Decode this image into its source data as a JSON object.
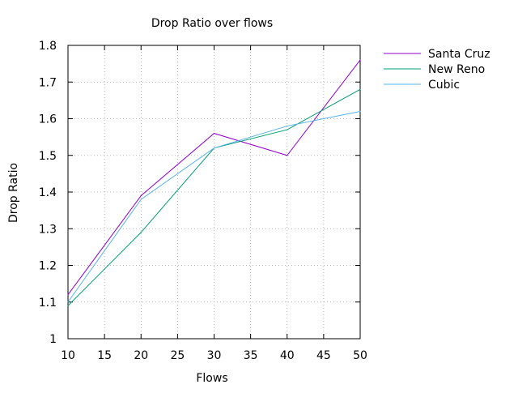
{
  "chart_data": {
    "type": "line",
    "title": "Drop Ratio over flows",
    "xlabel": "Flows",
    "ylabel": "Drop Ratio",
    "xlim": [
      10,
      50
    ],
    "ylim": [
      1,
      1.8
    ],
    "x_ticks": [
      10,
      15,
      20,
      25,
      30,
      35,
      40,
      45,
      50
    ],
    "y_ticks": [
      1,
      1.1,
      1.2,
      1.3,
      1.4,
      1.5,
      1.6,
      1.7,
      1.8
    ],
    "x_tick_labels": [
      "10",
      "15",
      "20",
      "25",
      "30",
      "35",
      "40",
      "45",
      "50"
    ],
    "y_tick_labels": [
      "1",
      "1.1",
      "1.2",
      "1.3",
      "1.4",
      "1.5",
      "1.6",
      "1.7",
      "1.8"
    ],
    "grid": true,
    "legend_position": "outside-top-right",
    "x": [
      10,
      20,
      30,
      40,
      50
    ],
    "series": [
      {
        "name": "Santa Cruz",
        "color": "#9400d3",
        "values": [
          1.12,
          1.39,
          1.56,
          1.5,
          1.76
        ]
      },
      {
        "name": "New Reno",
        "color": "#009e73",
        "values": [
          1.09,
          1.29,
          1.52,
          1.57,
          1.68
        ]
      },
      {
        "name": "Cubic",
        "color": "#56b4e9",
        "values": [
          1.1,
          1.38,
          1.52,
          1.58,
          1.62
        ]
      }
    ]
  }
}
